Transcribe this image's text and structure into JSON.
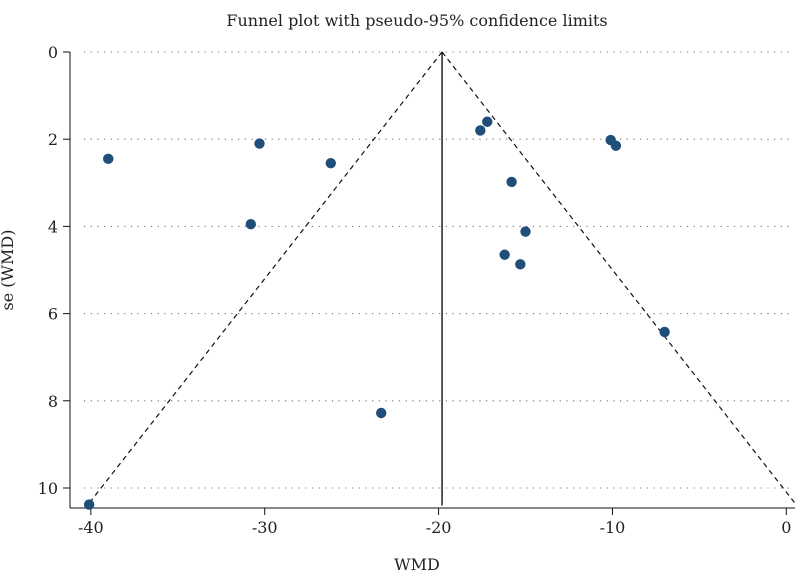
{
  "chart_data": {
    "type": "scatter",
    "title": "Funnel plot with pseudo-95% confidence limits",
    "xlabel": "WMD",
    "ylabel": "se (WMD)",
    "xlim": [
      -41.2,
      0.5
    ],
    "ylim": [
      0,
      10.6
    ],
    "y_inverted": true,
    "x_ticks": [
      -40,
      -30,
      -20,
      -10,
      0
    ],
    "y_ticks": [
      0,
      2,
      4,
      6,
      8,
      10
    ],
    "grid": "horizontal dotted",
    "pooled_estimate": -19.8,
    "pooled_line_se_range": [
      0,
      10.4
    ],
    "ci_limits": [
      {
        "name": "lower",
        "points": [
          [
            -19.8,
            0
          ],
          [
            -40.2,
            10.4
          ]
        ]
      },
      {
        "name": "upper",
        "points": [
          [
            -19.8,
            0
          ],
          [
            0.6,
            10.4
          ]
        ]
      }
    ],
    "points": [
      {
        "x": -40.1,
        "y": 10.38
      },
      {
        "x": -39.0,
        "y": 2.45
      },
      {
        "x": -30.8,
        "y": 3.95
      },
      {
        "x": -30.3,
        "y": 2.1
      },
      {
        "x": -26.2,
        "y": 2.55
      },
      {
        "x": -23.3,
        "y": 8.28
      },
      {
        "x": -17.6,
        "y": 1.8
      },
      {
        "x": -17.2,
        "y": 1.6
      },
      {
        "x": -15.8,
        "y": 2.98
      },
      {
        "x": -16.2,
        "y": 4.65
      },
      {
        "x": -15.3,
        "y": 4.87
      },
      {
        "x": -15.0,
        "y": 4.12
      },
      {
        "x": -10.1,
        "y": 2.02
      },
      {
        "x": -9.8,
        "y": 2.15
      },
      {
        "x": -7.0,
        "y": 6.42
      }
    ],
    "colors": {
      "points": "#1f4e79",
      "lines": "#111111",
      "grid": "#777777"
    }
  }
}
